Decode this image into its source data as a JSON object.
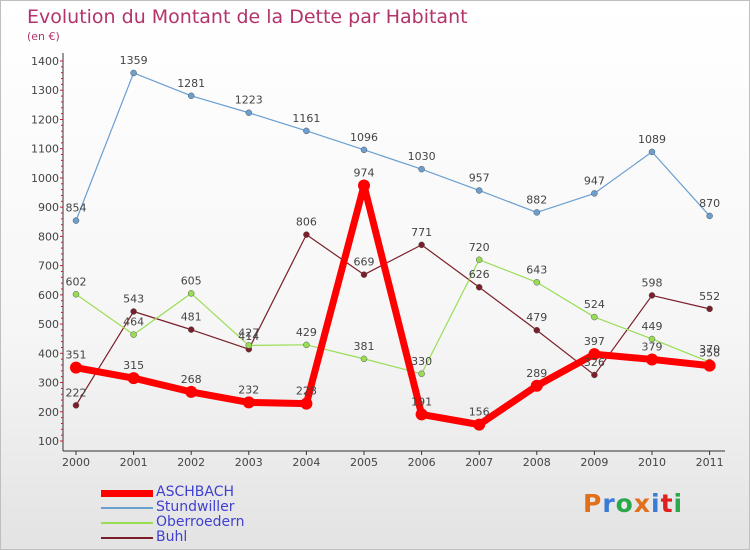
{
  "chart_data": {
    "type": "line",
    "title": "Evolution du Montant de la Dette par Habitant",
    "unit_label": "(en €)",
    "x": [
      "2000",
      "2001",
      "2002",
      "2003",
      "2004",
      "2005",
      "2006",
      "2007",
      "2008",
      "2009",
      "2010",
      "2011"
    ],
    "y_ticks": [
      100,
      200,
      300,
      400,
      500,
      600,
      700,
      800,
      900,
      1000,
      1100,
      1200,
      1300,
      1400
    ],
    "ylim": [
      100,
      1400
    ],
    "grid": false,
    "legend_position": "bottom-left",
    "series": [
      {
        "name": "ASCHBACH",
        "color": "#ff0000",
        "values": [
          351,
          315,
          268,
          232,
          228,
          974,
          191,
          156,
          289,
          397,
          379,
          358
        ]
      },
      {
        "name": "Stundwiller",
        "color": "#6a9fd0",
        "values": [
          854,
          1359,
          1281,
          1223,
          1161,
          1096,
          1030,
          957,
          882,
          947,
          1089,
          870
        ]
      },
      {
        "name": "Oberroedern",
        "color": "#99dd55",
        "values": [
          602,
          464,
          605,
          427,
          429,
          381,
          330,
          720,
          643,
          524,
          449,
          370
        ]
      },
      {
        "name": "Buhl",
        "color": "#7a1f2a",
        "values": [
          222,
          543,
          481,
          414,
          806,
          669,
          771,
          626,
          479,
          326,
          598,
          552
        ]
      }
    ]
  },
  "logo": {
    "letters": [
      "P",
      "r",
      "o",
      "x",
      "i",
      "t",
      "i"
    ],
    "colors": [
      "#e0701a",
      "#3a7bd5",
      "#2aa84a",
      "#e0701a",
      "#3a7bd5",
      "#e02020",
      "#2aa84a"
    ]
  }
}
